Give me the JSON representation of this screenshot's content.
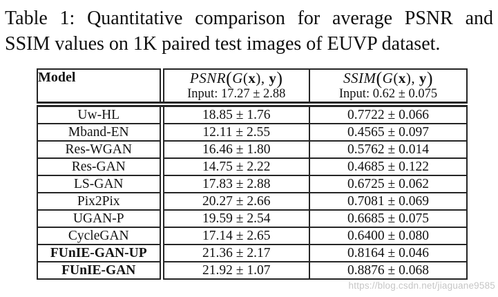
{
  "caption": {
    "line1": "Table 1: Quantitative comparison for average PSNR and",
    "line2": "SSIM values on 1K paired test images of EUVP dataset."
  },
  "table": {
    "columns": {
      "model_label": "Model",
      "psnr": {
        "math_tokens": [
          {
            "t": "PSNR",
            "s": "it"
          },
          {
            "t": "(",
            "s": "bigp"
          },
          {
            "t": "G",
            "s": "it"
          },
          {
            "t": "(",
            "s": "p"
          },
          {
            "t": "x",
            "s": "bf"
          },
          {
            "t": ")",
            "s": "p"
          },
          {
            "t": ", ",
            "s": "p"
          },
          {
            "t": "y",
            "s": "bf"
          },
          {
            "t": ")",
            "s": "bigp"
          }
        ],
        "input_line": "Input: 17.27 ± 2.88"
      },
      "ssim": {
        "math_tokens": [
          {
            "t": "SSIM",
            "s": "it"
          },
          {
            "t": "(",
            "s": "bigp"
          },
          {
            "t": "G",
            "s": "it"
          },
          {
            "t": "(",
            "s": "p"
          },
          {
            "t": "x",
            "s": "bf"
          },
          {
            "t": ")",
            "s": "p"
          },
          {
            "t": ", ",
            "s": "p"
          },
          {
            "t": "y",
            "s": "bf"
          },
          {
            "t": ")",
            "s": "bigp"
          }
        ],
        "input_line": "Input: 0.62 ± 0.075"
      }
    },
    "rows": [
      {
        "model": "Uw-HL",
        "psnr": "18.85 ± 1.76",
        "ssim": "0.7722 ± 0.066",
        "bold": false
      },
      {
        "model": "Mband-EN",
        "psnr": "12.11 ± 2.55",
        "ssim": "0.4565 ± 0.097",
        "bold": false
      },
      {
        "model": "Res-WGAN",
        "psnr": "16.46 ± 1.80",
        "ssim": "0.5762 ± 0.014",
        "bold": false
      },
      {
        "model": "Res-GAN",
        "psnr": "14.75 ± 2.22",
        "ssim": "0.4685 ± 0.122",
        "bold": false
      },
      {
        "model": "LS-GAN",
        "psnr": "17.83 ± 2.88",
        "ssim": "0.6725 ± 0.062",
        "bold": false
      },
      {
        "model": "Pix2Pix",
        "psnr": "20.27 ± 2.66",
        "ssim": "0.7081 ± 0.069",
        "bold": false
      },
      {
        "model": "UGAN-P",
        "psnr": "19.59 ± 2.54",
        "ssim": "0.6685 ± 0.075",
        "bold": false
      },
      {
        "model": "CycleGAN",
        "psnr": "17.14 ± 2.65",
        "ssim": "0.6400 ± 0.080",
        "bold": false
      },
      {
        "model": "FUnIE-GAN-UP",
        "psnr": "21.36 ± 2.17",
        "ssim": "0.8164 ± 0.046",
        "bold": true
      },
      {
        "model": "FUnIE-GAN",
        "psnr": "21.92 ± 1.07",
        "ssim": "0.8876 ± 0.068",
        "bold": true
      }
    ]
  },
  "chart_data": {
    "type": "table",
    "title": "Quantitative comparison for average PSNR and SSIM values on 1K paired test images of EUVP dataset",
    "columns": [
      "Model",
      "PSNR(G(x), y) — Input: 17.27 ± 2.88",
      "SSIM(G(x), y) — Input: 0.62 ± 0.075"
    ],
    "psnr_mean": [
      18.85,
      12.11,
      16.46,
      14.75,
      17.83,
      20.27,
      19.59,
      17.14,
      21.36,
      21.92
    ],
    "psnr_std": [
      1.76,
      2.55,
      1.8,
      2.22,
      2.88,
      2.66,
      2.54,
      2.65,
      2.17,
      1.07
    ],
    "ssim_mean": [
      0.7722,
      0.4565,
      0.5762,
      0.4685,
      0.6725,
      0.7081,
      0.6685,
      0.64,
      0.8164,
      0.8876
    ],
    "ssim_std": [
      0.066,
      0.097,
      0.014,
      0.122,
      0.062,
      0.069,
      0.075,
      0.08,
      0.046,
      0.068
    ],
    "models": [
      "Uw-HL",
      "Mband-EN",
      "Res-WGAN",
      "Res-GAN",
      "LS-GAN",
      "Pix2Pix",
      "UGAN-P",
      "CycleGAN",
      "FUnIE-GAN-UP",
      "FUnIE-GAN"
    ]
  },
  "watermark": {
    "text": "https://blog.csdn.net/jiaguane9585"
  },
  "colors": {
    "background": "#ffffff",
    "text": "#151515",
    "border": "#252525",
    "watermark": "#c6c6c6"
  }
}
